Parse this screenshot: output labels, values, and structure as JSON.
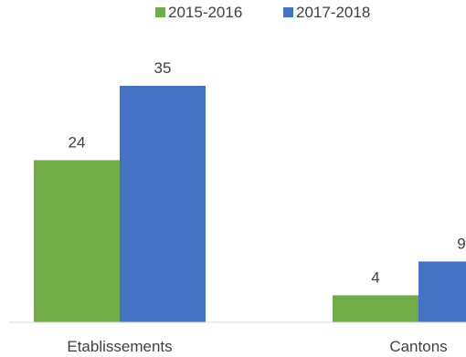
{
  "chart_data": {
    "type": "bar",
    "title": "",
    "xlabel": "",
    "ylabel": "",
    "categories": [
      "Etablissements",
      "Cantons"
    ],
    "series": [
      {
        "name": "2015-2016",
        "values": [
          24,
          4
        ],
        "color": "#70ad47"
      },
      {
        "name": "2017-2018",
        "values": [
          35,
          9
        ],
        "color": "#4472c4"
      }
    ],
    "ylim": [
      0,
      40
    ],
    "grid": false,
    "legend_position": "top-center",
    "data_labels": true
  }
}
